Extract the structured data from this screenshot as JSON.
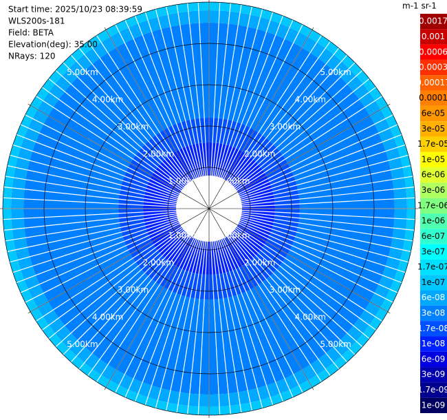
{
  "chart_data": {
    "type": "ppi",
    "info_lines": [
      "Start time: 2025/10/23 08:39:59",
      "WLS200s-181",
      "Field: BETA",
      "Elevation(deg): 35.00",
      "NRays: 120"
    ],
    "colorbar_label": "m-1 sr-1",
    "rlim": [
      0,
      5
    ],
    "range_rings": [
      {
        "value": 1,
        "label": "1.00km"
      },
      {
        "value": 2,
        "label": "2.00km"
      },
      {
        "value": 3,
        "label": "3.00km"
      },
      {
        "value": 4,
        "label": "4.00km"
      },
      {
        "value": 5,
        "label": "5.00km"
      }
    ],
    "n_rays": 120,
    "range_bins": [
      0.8,
      1.6,
      2.2,
      4.5,
      4.8,
      5.0
    ],
    "range_values": [
      1e-08,
      1.7e-08,
      3e-08,
      6e-08,
      1e-07
    ],
    "colorbar": {
      "levels": [
        0.0017,
        0.001,
        0.0006,
        0.0003,
        0.00017,
        0.0001,
        {
          "value": 6e-05,
          "label": "6e-05"
        },
        {
          "value": 3e-05,
          "label": "3e-05"
        },
        {
          "value": 1.7e-05,
          "label": "1.7e-05"
        },
        {
          "value": 1e-05,
          "label": "1e-05"
        },
        {
          "value": 6e-06,
          "label": "6e-06"
        },
        {
          "value": 3e-06,
          "label": "3e-06"
        },
        {
          "value": 1.7e-06,
          "label": "1.7e-06"
        },
        {
          "value": 1e-06,
          "label": "1e-06"
        },
        {
          "value": 6e-07,
          "label": "6e-07"
        },
        {
          "value": 3e-07,
          "label": "3e-07"
        },
        {
          "value": 1.7e-07,
          "label": "1.7e-07"
        },
        {
          "value": 1e-07,
          "label": "1e-07"
        },
        {
          "value": 6e-08,
          "label": "6e-08"
        },
        {
          "value": 3e-08,
          "label": "3e-08"
        },
        {
          "value": 1.7e-08,
          "label": "1.7e-08"
        },
        {
          "value": 1e-08,
          "label": "1e-08"
        },
        {
          "value": 6e-09,
          "label": "6e-09"
        },
        {
          "value": 3e-09,
          "label": "3e-09"
        },
        {
          "value": 1.7e-09,
          "label": "1.7e-09"
        },
        {
          "value": 1e-09,
          "label": "1e-09"
        }
      ],
      "colors": [
        "#a00000",
        "#c80000",
        "#ff0000",
        "#ff3000",
        "#ff6000",
        "#ff8000",
        "#ff9800",
        "#ffb000",
        "#ffd000",
        "#ffff00",
        "#e0ff30",
        "#b0ff60",
        "#80ff80",
        "#50ffb0",
        "#30ffd0",
        "#00ffff",
        "#00e0ff",
        "#00c8ff",
        "#00a8ff",
        "#0080ff",
        "#0050ff",
        "#0020ff",
        "#0000e0",
        "#0000b0",
        "#000090",
        "#000060"
      ]
    }
  }
}
